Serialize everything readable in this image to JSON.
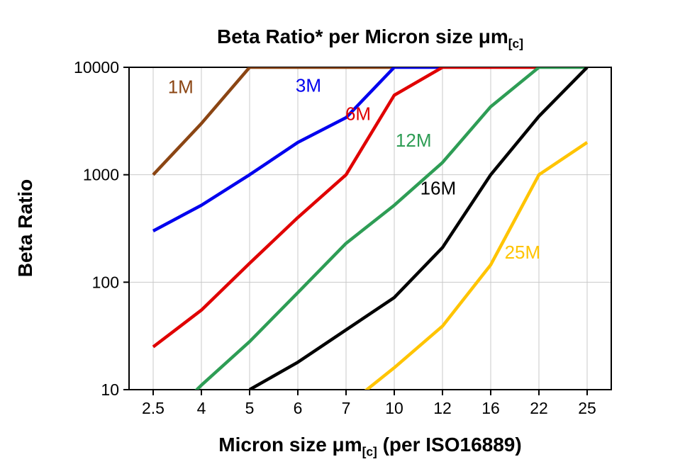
{
  "title": {
    "text": "Beta Ratio* per Micron size μm",
    "sub": "[c]"
  },
  "y_axis": {
    "label": "Beta Ratio"
  },
  "x_axis": {
    "text": "Micron size μm",
    "sub": "[c]",
    "suffix": " (per ISO16889)"
  },
  "chart_data": {
    "type": "line",
    "x_scale": "category",
    "y_scale": "log",
    "ylim": [
      10,
      10000
    ],
    "y_ticks": [
      "10",
      "100",
      "1000",
      "10000"
    ],
    "categories": [
      "2.5",
      "4",
      "5",
      "6",
      "7",
      "10",
      "12",
      "16",
      "22",
      "25"
    ],
    "grid": {
      "vertical": true,
      "horizontal": true,
      "color": "#c9c9c9"
    },
    "axis_color": "#000000",
    "series": [
      {
        "name": "1M",
        "color": "#8B4513",
        "values": [
          1000,
          3000,
          10000,
          10000,
          10000,
          10000,
          null,
          null,
          null,
          null
        ],
        "label": {
          "xi": 0.57,
          "v": 6600
        }
      },
      {
        "name": "3M",
        "color": "#0000EE",
        "values": [
          300,
          520,
          1000,
          2000,
          3400,
          10000,
          10000,
          null,
          null,
          null
        ],
        "label": {
          "xi": 3.22,
          "v": 6800
        }
      },
      {
        "name": "6M",
        "color": "#E00000",
        "values": [
          25,
          55,
          150,
          400,
          1000,
          5500,
          10000,
          10000,
          10000,
          null
        ],
        "label": {
          "xi": 4.25,
          "v": 3700
        }
      },
      {
        "name": "12M",
        "color": "#2E9D55",
        "values": [
          4,
          11,
          28,
          80,
          230,
          520,
          1300,
          4300,
          10000,
          10000
        ],
        "label": {
          "xi": 5.4,
          "v": 2100
        }
      },
      {
        "name": "16M",
        "color": "#000000",
        "values": [
          null,
          null,
          10,
          18,
          36,
          72,
          210,
          1000,
          3500,
          10000
        ],
        "label": {
          "xi": 5.91,
          "v": 750
        }
      },
      {
        "name": "25M",
        "color": "#FFC400",
        "values": [
          null,
          null,
          null,
          null,
          7,
          16,
          39,
          145,
          1000,
          2000
        ],
        "label": {
          "xi": 7.66,
          "v": 190
        }
      }
    ]
  }
}
